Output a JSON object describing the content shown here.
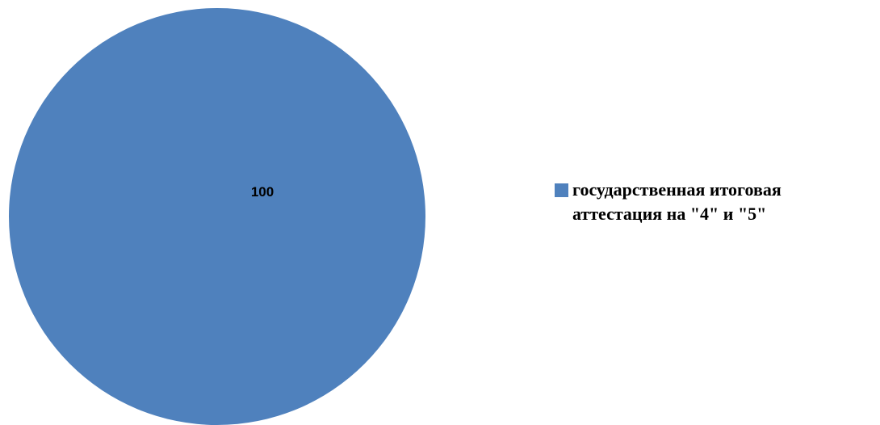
{
  "chart_data": {
    "type": "pie",
    "categories": [
      "государственная итоговая\nаттестация на \"4\" и \"5\""
    ],
    "values": [
      100
    ],
    "data_labels": [
      "100"
    ],
    "colors": [
      "#4f81bd"
    ],
    "legend": {
      "placement": "right",
      "entries": [
        "государственная итоговая\nаттестация на \"4\" и \"5\""
      ]
    }
  }
}
